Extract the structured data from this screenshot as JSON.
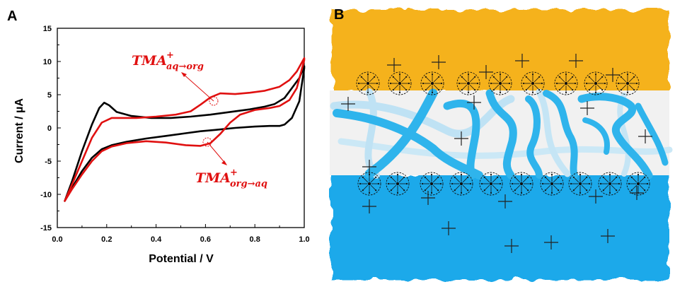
{
  "panels": {
    "a_label": "A",
    "b_label": "B"
  },
  "colors": {
    "black_series": "#000000",
    "red_series": "#e01010",
    "oil": "#f5b21c",
    "water": "#1aa9ea",
    "channel": "#2fb4ec"
  },
  "chart_data": {
    "type": "line",
    "xlabel": "Potential / V",
    "ylabel": "Current / µA",
    "xlim": [
      0.0,
      1.0
    ],
    "ylim": [
      -15,
      15
    ],
    "xticks": [
      "0.0",
      "0.2",
      "0.4",
      "0.6",
      "0.8",
      "1.0"
    ],
    "yticks": [
      "15",
      "10",
      "5",
      "0",
      "-5",
      "-10",
      "-15"
    ],
    "grid": false,
    "annotations": [
      {
        "main": "TMA",
        "sup": "+",
        "sub": "aq→org"
      },
      {
        "main": "TMA",
        "sup": "+",
        "sub": "org→aq"
      }
    ],
    "series": [
      {
        "color": "#000000",
        "x": [
          0.03,
          0.06,
          0.1,
          0.14,
          0.17,
          0.19,
          0.21,
          0.24,
          0.3,
          0.38,
          0.46,
          0.54,
          0.62,
          0.7,
          0.78,
          0.84,
          0.88,
          0.92,
          0.95,
          0.98,
          1.0,
          1.0,
          0.98,
          0.95,
          0.92,
          0.9,
          0.86,
          0.8,
          0.72,
          0.64,
          0.58,
          0.52,
          0.44,
          0.36,
          0.28,
          0.22,
          0.18,
          0.14,
          0.1,
          0.06,
          0.03
        ],
        "y": [
          -11.0,
          -8.0,
          -3.5,
          0.5,
          3.0,
          3.8,
          3.4,
          2.4,
          1.8,
          1.5,
          1.5,
          1.7,
          2.0,
          2.4,
          2.8,
          3.2,
          3.6,
          4.5,
          6.0,
          7.5,
          9.3,
          9.0,
          4.0,
          1.5,
          0.5,
          0.3,
          0.3,
          0.2,
          0.0,
          -0.3,
          -0.5,
          -0.8,
          -1.2,
          -1.6,
          -2.1,
          -2.6,
          -3.2,
          -4.5,
          -6.5,
          -9.0,
          -11.0
        ]
      },
      {
        "color": "#e01010",
        "x": [
          0.03,
          0.06,
          0.1,
          0.14,
          0.18,
          0.22,
          0.26,
          0.32,
          0.4,
          0.48,
          0.54,
          0.58,
          0.62,
          0.66,
          0.72,
          0.78,
          0.84,
          0.9,
          0.94,
          0.97,
          1.0,
          1.0,
          0.97,
          0.94,
          0.9,
          0.86,
          0.8,
          0.74,
          0.7,
          0.66,
          0.62,
          0.58,
          0.52,
          0.44,
          0.36,
          0.28,
          0.22,
          0.18,
          0.14,
          0.1,
          0.06,
          0.03
        ],
        "y": [
          -11.0,
          -8.5,
          -5.0,
          -1.5,
          0.8,
          1.5,
          1.5,
          1.5,
          1.7,
          2.0,
          2.5,
          3.5,
          4.6,
          5.2,
          5.1,
          5.3,
          5.6,
          6.2,
          7.2,
          8.5,
          10.5,
          10.2,
          6.0,
          4.2,
          3.3,
          3.0,
          2.7,
          2.0,
          0.8,
          -0.9,
          -2.3,
          -2.7,
          -2.6,
          -2.2,
          -2.0,
          -2.3,
          -2.8,
          -3.5,
          -5.0,
          -7.0,
          -9.2,
          -11.0
        ]
      }
    ]
  }
}
